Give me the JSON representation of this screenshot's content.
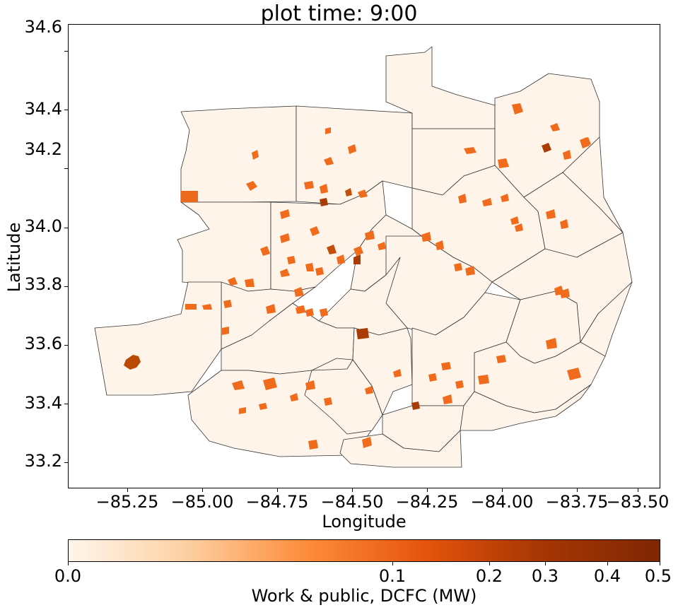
{
  "title": "plot time: 9:00",
  "map": {
    "xlabel": "Longitude",
    "ylabel": "Latitude",
    "xlim": [
      -85.44,
      -83.47
    ],
    "ylim": [
      33.1,
      34.69
    ],
    "xticks": [
      "−85.25",
      "−85.00",
      "−84.75",
      "−84.50",
      "−84.25",
      "−84.00",
      "−83.75",
      "−83.50"
    ],
    "xtick_values": [
      -85.25,
      -85.0,
      -84.75,
      -84.5,
      -84.25,
      -84.0,
      -83.75,
      -83.5
    ],
    "yticks": [
      "34.6",
      "34.4",
      "34.2",
      "34.0",
      "33.8",
      "33.6",
      "33.4",
      "33.2"
    ],
    "ytick_values": [
      34.6,
      34.4,
      34.2,
      34.0,
      33.8,
      33.6,
      33.4,
      33.2
    ],
    "base_fill": "#fef4e9",
    "border_color": "#333333"
  },
  "colorbar": {
    "label": "Work & public, DCFC (MW)",
    "ticks": [
      "0.0",
      "0.1",
      "0.2",
      "0.3",
      "0.4",
      "0.5"
    ],
    "tick_values": [
      0.0,
      0.1,
      0.2,
      0.3,
      0.4,
      0.5
    ],
    "cmap": "Oranges",
    "colors": [
      "#fff5eb",
      "#fdd0a2",
      "#fd8d3c",
      "#e6550d",
      "#a63603",
      "#7f2704"
    ]
  }
}
